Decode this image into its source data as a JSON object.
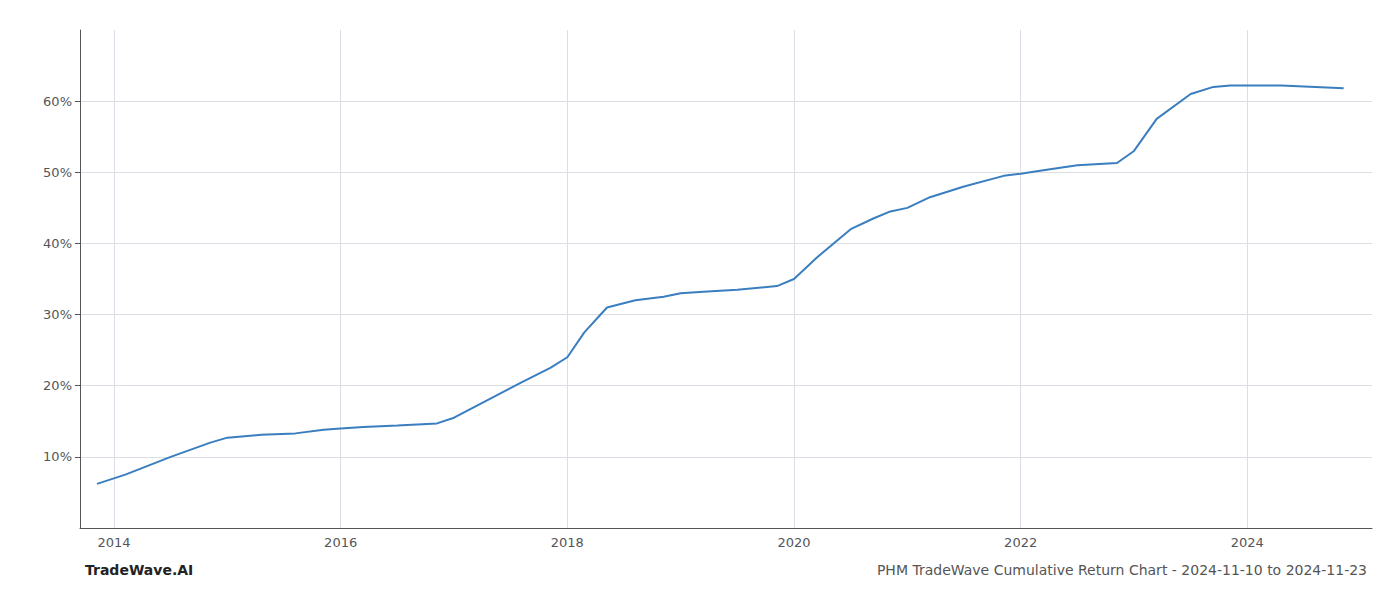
{
  "chart_data": {
    "type": "line",
    "title": "PHM TradeWave Cumulative Return Chart - 2024-11-10 to 2024-11-23",
    "annotations": [
      "TradeWave.AI"
    ],
    "x": [
      2013.85,
      2014.1,
      2014.5,
      2014.85,
      2015.0,
      2015.3,
      2015.6,
      2015.85,
      2016.0,
      2016.2,
      2016.5,
      2016.85,
      2017.0,
      2017.3,
      2017.6,
      2017.85,
      2018.0,
      2018.15,
      2018.35,
      2018.6,
      2018.85,
      2019.0,
      2019.2,
      2019.5,
      2019.85,
      2020.0,
      2020.2,
      2020.5,
      2020.7,
      2020.85,
      2021.0,
      2021.2,
      2021.5,
      2021.85,
      2022.0,
      2022.2,
      2022.5,
      2022.85,
      2023.0,
      2023.2,
      2023.5,
      2023.7,
      2023.85,
      2024.0,
      2024.3,
      2024.6,
      2024.85
    ],
    "values": [
      6.2,
      7.5,
      10.0,
      12.0,
      12.7,
      13.1,
      13.3,
      13.8,
      14.0,
      14.2,
      14.4,
      14.7,
      15.5,
      18.0,
      20.5,
      22.5,
      24.0,
      27.5,
      31.0,
      32.0,
      32.5,
      33.0,
      33.2,
      33.5,
      34.0,
      35.0,
      38.0,
      42.0,
      43.5,
      44.5,
      45.0,
      46.5,
      48.0,
      49.5,
      49.8,
      50.3,
      51.0,
      51.3,
      53.0,
      57.5,
      61.0,
      62.0,
      62.2,
      62.2,
      62.2,
      62.0,
      61.8
    ],
    "color": "#3a7ebf",
    "xlim": [
      2013.7,
      2025.1
    ],
    "xticks": [
      2014,
      2016,
      2018,
      2020,
      2022,
      2024
    ],
    "ylim": [
      0,
      70
    ],
    "yticks": [
      {
        "value": 10,
        "label": "10%"
      },
      {
        "value": 20,
        "label": "20%"
      },
      {
        "value": 30,
        "label": "30%"
      },
      {
        "value": 40,
        "label": "40%"
      },
      {
        "value": 50,
        "label": "50%"
      },
      {
        "value": 60,
        "label": "60%"
      }
    ],
    "grid": true
  }
}
